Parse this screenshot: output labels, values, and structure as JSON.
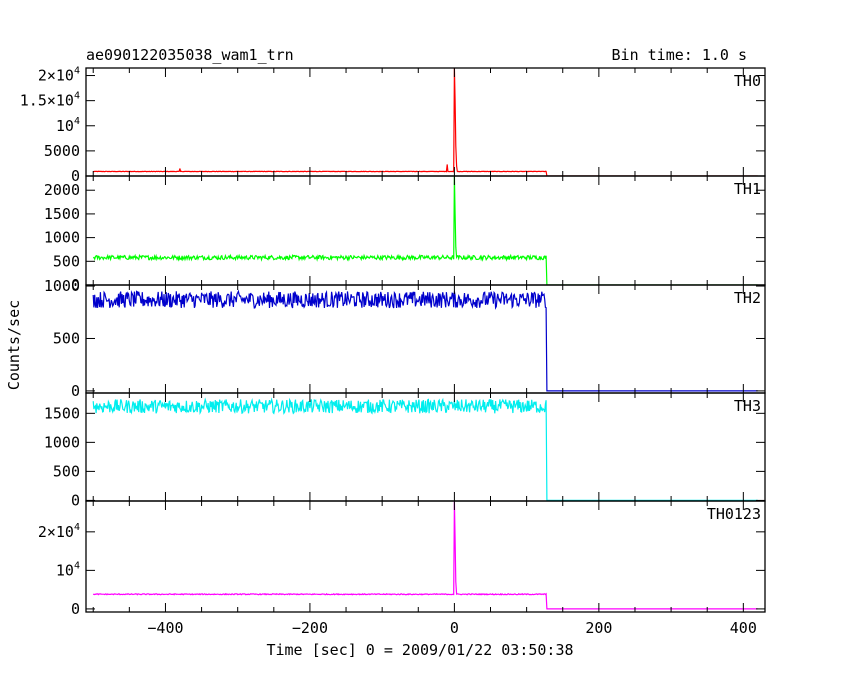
{
  "header": {
    "title": "ae090122035038_wam1_trn",
    "bin_time": "Bin time: 1.0 s"
  },
  "axes": {
    "xlabel": "Time [sec] 0 = 2009/01/22 03:50:38",
    "ylabel": "Counts/sec"
  },
  "chart_data": {
    "type": "line",
    "title": "ae090122035038_wam1_trn",
    "subtitle": "Bin time: 1.0 s",
    "xlabel": "Time [sec] 0 = 2009/01/22 03:50:38",
    "ylabel": "Counts/sec",
    "xlim": [
      -510,
      430
    ],
    "x_ticks": [
      -400,
      -200,
      0,
      200,
      400
    ],
    "x_tick_labels": [
      "−400",
      "−200",
      "0",
      "200",
      "400"
    ],
    "grid": false,
    "panels": [
      {
        "name": "TH0",
        "color": "#ff0000",
        "ylim": [
          0,
          21500
        ],
        "y_ticks": [
          0,
          5000,
          10000,
          15000,
          20000
        ],
        "y_tick_labels": [
          "0",
          "5000",
          "10^4",
          "1.5×10^4",
          "2×10^4"
        ],
        "baseline": 900,
        "noise": 40,
        "drop_time": 128,
        "after": 0,
        "spikes": [
          {
            "x": -380,
            "y": 1500
          },
          {
            "x": -10,
            "y": 2300
          },
          {
            "x": 0,
            "y": 21500
          },
          {
            "x": 1,
            "y": 15000
          },
          {
            "x": 2,
            "y": 6000
          },
          {
            "x": 3,
            "y": 2000
          }
        ]
      },
      {
        "name": "TH1",
        "color": "#00ff00",
        "ylim": [
          0,
          2300
        ],
        "y_ticks": [
          0,
          500,
          1000,
          1500,
          2000
        ],
        "y_tick_labels": [
          "0",
          "500",
          "1000",
          "1500",
          "2000"
        ],
        "baseline": 580,
        "noise": 45,
        "drop_time": 128,
        "after": 0,
        "spikes": [
          {
            "x": 0,
            "y": 2300
          },
          {
            "x": 1,
            "y": 1500
          },
          {
            "x": 2,
            "y": 800
          }
        ]
      },
      {
        "name": "TH2",
        "color": "#0000cc",
        "ylim": [
          -20,
          1010
        ],
        "y_ticks": [
          0,
          500,
          1000
        ],
        "y_tick_labels": [
          "0",
          "500",
          "1000"
        ],
        "baseline": 870,
        "noise": 80,
        "drop_time": 128,
        "after": 0,
        "spikes": []
      },
      {
        "name": "TH3",
        "color": "#00eeee",
        "ylim": [
          -10,
          1850
        ],
        "y_ticks": [
          0,
          500,
          1000,
          1500
        ],
        "y_tick_labels": [
          "0",
          "500",
          "1000",
          "1500"
        ],
        "baseline": 1620,
        "noise": 120,
        "drop_time": 128,
        "after": 0,
        "spikes": []
      },
      {
        "name": "TH0123",
        "color": "#ff00ff",
        "ylim": [
          -800,
          28000
        ],
        "y_ticks": [
          0,
          10000,
          20000
        ],
        "y_tick_labels": [
          "0",
          "10^4",
          "2×10^4"
        ],
        "baseline": 3800,
        "noise": 120,
        "drop_time": 128,
        "after": 0,
        "spikes": [
          {
            "x": 0,
            "y": 28000
          },
          {
            "x": 1,
            "y": 18000
          },
          {
            "x": 2,
            "y": 7000
          }
        ]
      }
    ]
  }
}
